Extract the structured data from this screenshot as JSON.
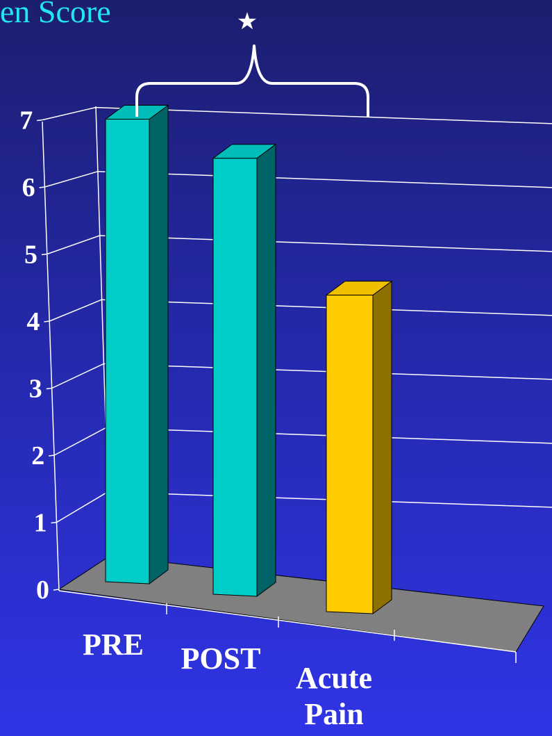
{
  "title": "en Score",
  "significance_marker": "★",
  "colors": {
    "background_top": "#1c1e6e",
    "background_bottom": "#3034e6",
    "title": "#22e6f0",
    "floor": "#808080",
    "gridline": "#ffffff"
  },
  "chart_data": {
    "type": "bar",
    "categories": [
      "PRE",
      "POST",
      "Acute\nPain"
    ],
    "values": [
      7.0,
      6.6,
      4.8
    ],
    "colors": [
      "#00ccc8",
      "#00ccc8",
      "#ffcc00"
    ],
    "ylim": [
      0,
      7
    ],
    "yticks": [
      "0",
      "1",
      "2",
      "3",
      "4",
      "5",
      "6",
      "7"
    ],
    "grid": true,
    "annotation": "bracket with star over PRE and POST"
  }
}
